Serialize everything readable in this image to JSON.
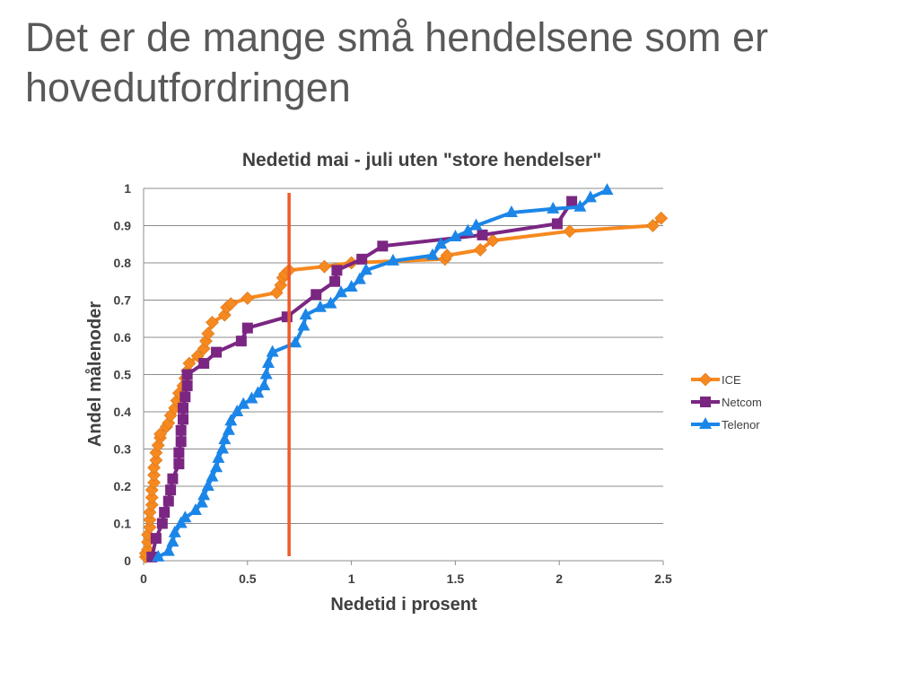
{
  "slide": {
    "title_line1": "Det er de mange små hendelsene som er",
    "title_line2": "hovedutfordringen"
  },
  "chart_data": {
    "type": "line",
    "title": "Nedetid mai - juli uten \"store hendelser\"",
    "xlabel": "Nedetid i prosent",
    "ylabel": "Andel målenoder",
    "xlim": [
      0,
      2.5
    ],
    "ylim": [
      0,
      1
    ],
    "x_ticks": [
      "0",
      "0.5",
      "1",
      "1.5",
      "2",
      "2.5"
    ],
    "y_ticks": [
      "0",
      "0.1",
      "0.2",
      "0.3",
      "0.4",
      "0.5",
      "0.6",
      "0.7",
      "0.8",
      "0.9",
      "1"
    ],
    "grid": "horizontal",
    "legend_position": "right",
    "reference_line": {
      "x": 0.7,
      "color": "#f05a28"
    },
    "series": [
      {
        "name": "ICE",
        "color": "#f6891f",
        "marker": "diamond",
        "points": [
          [
            0.01,
            0.01
          ],
          [
            0.01,
            0.02
          ],
          [
            0.02,
            0.03
          ],
          [
            0.02,
            0.05
          ],
          [
            0.02,
            0.07
          ],
          [
            0.03,
            0.09
          ],
          [
            0.03,
            0.11
          ],
          [
            0.03,
            0.13
          ],
          [
            0.04,
            0.15
          ],
          [
            0.04,
            0.17
          ],
          [
            0.04,
            0.19
          ],
          [
            0.05,
            0.21
          ],
          [
            0.05,
            0.23
          ],
          [
            0.05,
            0.25
          ],
          [
            0.06,
            0.27
          ],
          [
            0.06,
            0.29
          ],
          [
            0.07,
            0.31
          ],
          [
            0.08,
            0.33
          ],
          [
            0.08,
            0.34
          ],
          [
            0.11,
            0.36
          ],
          [
            0.12,
            0.37
          ],
          [
            0.13,
            0.39
          ],
          [
            0.15,
            0.41
          ],
          [
            0.16,
            0.43
          ],
          [
            0.17,
            0.45
          ],
          [
            0.19,
            0.47
          ],
          [
            0.2,
            0.49
          ],
          [
            0.21,
            0.51
          ],
          [
            0.22,
            0.53
          ],
          [
            0.26,
            0.55
          ],
          [
            0.29,
            0.57
          ],
          [
            0.3,
            0.59
          ],
          [
            0.31,
            0.61
          ],
          [
            0.33,
            0.64
          ],
          [
            0.39,
            0.66
          ],
          [
            0.4,
            0.68
          ],
          [
            0.42,
            0.69
          ],
          [
            0.5,
            0.705
          ],
          [
            0.64,
            0.72
          ],
          [
            0.66,
            0.74
          ],
          [
            0.67,
            0.76
          ],
          [
            0.68,
            0.77
          ],
          [
            0.7,
            0.78
          ],
          [
            0.87,
            0.79
          ],
          [
            1.0,
            0.8
          ],
          [
            1.45,
            0.81
          ],
          [
            1.46,
            0.82
          ],
          [
            1.62,
            0.835
          ],
          [
            1.68,
            0.86
          ],
          [
            2.05,
            0.885
          ],
          [
            2.45,
            0.9
          ],
          [
            2.49,
            0.92
          ]
        ]
      },
      {
        "name": "Netcom",
        "color": "#7b2682",
        "marker": "square",
        "points": [
          [
            0.04,
            0.01
          ],
          [
            0.06,
            0.06
          ],
          [
            0.09,
            0.1
          ],
          [
            0.1,
            0.13
          ],
          [
            0.12,
            0.16
          ],
          [
            0.13,
            0.19
          ],
          [
            0.14,
            0.22
          ],
          [
            0.17,
            0.26
          ],
          [
            0.17,
            0.29
          ],
          [
            0.18,
            0.32
          ],
          [
            0.18,
            0.35
          ],
          [
            0.19,
            0.38
          ],
          [
            0.19,
            0.41
          ],
          [
            0.2,
            0.44
          ],
          [
            0.21,
            0.47
          ],
          [
            0.21,
            0.5
          ],
          [
            0.29,
            0.53
          ],
          [
            0.35,
            0.56
          ],
          [
            0.47,
            0.59
          ],
          [
            0.5,
            0.625
          ],
          [
            0.69,
            0.655
          ],
          [
            0.83,
            0.715
          ],
          [
            0.92,
            0.75
          ],
          [
            0.93,
            0.78
          ],
          [
            1.05,
            0.81
          ],
          [
            1.15,
            0.845
          ],
          [
            1.63,
            0.875
          ],
          [
            1.99,
            0.905
          ],
          [
            2.06,
            0.965
          ]
        ]
      },
      {
        "name": "Telenor",
        "color": "#1b86e8",
        "marker": "triangle",
        "points": [
          [
            0.07,
            0.01
          ],
          [
            0.12,
            0.025
          ],
          [
            0.14,
            0.05
          ],
          [
            0.15,
            0.075
          ],
          [
            0.18,
            0.1
          ],
          [
            0.2,
            0.115
          ],
          [
            0.25,
            0.135
          ],
          [
            0.28,
            0.155
          ],
          [
            0.29,
            0.175
          ],
          [
            0.31,
            0.2
          ],
          [
            0.33,
            0.225
          ],
          [
            0.35,
            0.25
          ],
          [
            0.36,
            0.275
          ],
          [
            0.38,
            0.3
          ],
          [
            0.39,
            0.325
          ],
          [
            0.41,
            0.35
          ],
          [
            0.42,
            0.375
          ],
          [
            0.45,
            0.4
          ],
          [
            0.48,
            0.42
          ],
          [
            0.52,
            0.435
          ],
          [
            0.55,
            0.45
          ],
          [
            0.58,
            0.47
          ],
          [
            0.59,
            0.5
          ],
          [
            0.6,
            0.53
          ],
          [
            0.62,
            0.56
          ],
          [
            0.73,
            0.585
          ],
          [
            0.77,
            0.63
          ],
          [
            0.78,
            0.66
          ],
          [
            0.85,
            0.68
          ],
          [
            0.9,
            0.69
          ],
          [
            0.95,
            0.72
          ],
          [
            1.0,
            0.735
          ],
          [
            1.04,
            0.755
          ],
          [
            1.07,
            0.78
          ],
          [
            1.2,
            0.805
          ],
          [
            1.39,
            0.82
          ],
          [
            1.43,
            0.85
          ],
          [
            1.5,
            0.87
          ],
          [
            1.56,
            0.885
          ],
          [
            1.6,
            0.9
          ],
          [
            1.77,
            0.935
          ],
          [
            1.97,
            0.945
          ],
          [
            2.1,
            0.95
          ],
          [
            2.15,
            0.975
          ],
          [
            2.23,
            0.995
          ]
        ]
      }
    ]
  }
}
